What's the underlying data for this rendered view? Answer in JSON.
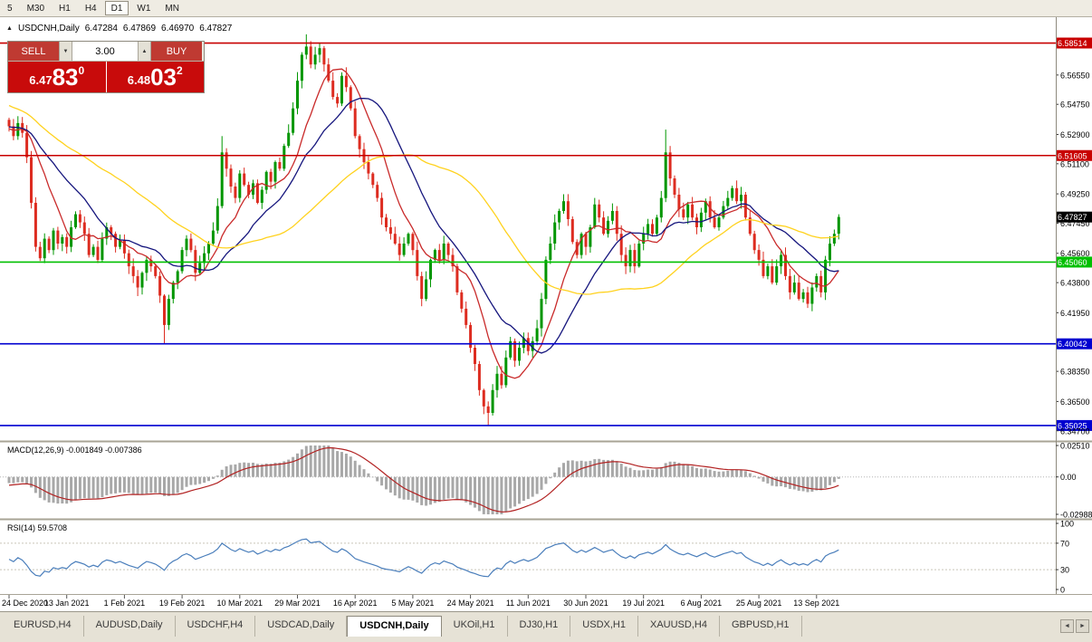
{
  "toolbar": {
    "timeframes": [
      "5",
      "M30",
      "H1",
      "H4",
      "D1",
      "W1",
      "MN"
    ],
    "active_timeframe": "D1"
  },
  "chart_header": {
    "collapse_icon": "▲",
    "symbol": "USDCNH,Daily",
    "open": "6.47284",
    "high": "6.47869",
    "low": "6.46970",
    "close": "6.47827"
  },
  "trade_panel": {
    "sell_label": "SELL",
    "buy_label": "BUY",
    "volume": "3.00",
    "spin_down": "▼",
    "spin_up": "▲",
    "bid": {
      "prefix": "6.47",
      "pips": "83",
      "point": "0"
    },
    "ask": {
      "prefix": "6.48",
      "pips": "03",
      "point": "2"
    }
  },
  "price_axis": {
    "ticks": [
      "6.56550",
      "6.54750",
      "6.52900",
      "6.51100",
      "6.49250",
      "6.47450",
      "6.45600",
      "6.43800",
      "6.41950",
      "6.38350",
      "6.36500",
      "6.34700"
    ]
  },
  "hlines": [
    {
      "price": 6.58514,
      "label": "6.58514",
      "color": "#c80000"
    },
    {
      "price": 6.51605,
      "label": "6.51605",
      "color": "#c80000"
    },
    {
      "price": 6.4506,
      "label": "6.45060",
      "color": "#00c000"
    },
    {
      "price": 6.40042,
      "label": "6.40042",
      "color": "#0000d0"
    },
    {
      "price": 6.35025,
      "label": "6.35025",
      "color": "#0000d0"
    }
  ],
  "current_price": {
    "label": "6.47827",
    "value": 6.47827,
    "bg": "#000000"
  },
  "macd": {
    "title": "MACD(12,26,9) -0.001849 -0.007386",
    "axis": [
      {
        "label": "0.02510",
        "value": 0.0251
      },
      {
        "label": "0.00",
        "value": 0
      },
      {
        "label": "-0.02988",
        "value": -0.02988
      }
    ]
  },
  "rsi": {
    "title": "RSI(14) 59.5708",
    "axis": [
      {
        "label": "100",
        "value": 100
      },
      {
        "label": "70",
        "value": 70
      },
      {
        "label": "30",
        "value": 30
      },
      {
        "label": "0",
        "value": 0
      }
    ],
    "levels": [
      70,
      30
    ]
  },
  "date_axis": {
    "labels": [
      "24 Dec 2020",
      "13 Jan 2021",
      "1 Feb 2021",
      "19 Feb 2021",
      "10 Mar 2021",
      "29 Mar 2021",
      "16 Apr 2021",
      "5 May 2021",
      "24 May 2021",
      "11 Jun 2021",
      "30 Jun 2021",
      "19 Jul 2021",
      "6 Aug 2021",
      "25 Aug 2021",
      "13 Sep 2021"
    ]
  },
  "tabs": {
    "items": [
      "EURUSD,H4",
      "AUDUSD,Daily",
      "USDCHF,H4",
      "USDCAD,Daily",
      "USDCNH,Daily",
      "UKOil,H1",
      "DJ30,H1",
      "USDX,H1",
      "XAUUSD,H4",
      "GBPUSD,H1"
    ],
    "active": "USDCNH,Daily",
    "scroll_left": "◄",
    "scroll_right": "►"
  },
  "chart_data": {
    "type": "candlestick",
    "symbol": "USDCNH",
    "timeframe": "Daily",
    "ylim": [
      6.3413,
      6.601
    ],
    "macd_range": [
      -0.02988,
      0.0251
    ],
    "colors": {
      "bull": "#009600",
      "bear": "#dd2c20",
      "ma_fast": "#c92a2a",
      "ma_mid": "#15157d",
      "ma_slow": "#ffd21e",
      "macd_hist": "#a8a8a8",
      "macd_signal": "#b22222",
      "rsi": "#4a7ebb"
    },
    "moving_averages": [
      {
        "period": 10,
        "color_key": "ma_fast"
      },
      {
        "period": 20,
        "color_key": "ma_mid"
      },
      {
        "period": 45,
        "color_key": "ma_slow"
      }
    ],
    "date_tick_indices": [
      0,
      13,
      26,
      39,
      52,
      65,
      78,
      91,
      104,
      117,
      130,
      143,
      156,
      169,
      182
    ],
    "pre_closes": [
      6.605,
      6.598,
      6.601,
      6.594,
      6.588,
      6.592,
      6.585,
      6.58,
      6.584,
      6.581,
      6.578,
      6.572,
      6.575,
      6.568,
      6.562,
      6.566,
      6.558,
      6.552,
      6.556,
      6.548,
      6.545,
      6.55,
      6.542,
      6.538,
      6.544,
      6.548,
      6.542,
      6.536,
      6.54,
      6.545,
      6.538,
      6.532,
      6.538,
      6.542,
      6.536,
      6.53,
      6.535,
      6.54,
      6.534,
      6.528,
      6.532,
      6.538,
      6.532,
      6.526,
      6.53,
      6.536,
      6.531,
      6.527,
      6.533,
      6.538
    ],
    "closes": [
      6.534,
      6.528,
      6.536,
      6.53,
      6.515,
      6.487,
      6.46,
      6.453,
      6.465,
      6.458,
      6.47,
      6.462,
      6.466,
      6.46,
      6.472,
      6.48,
      6.475,
      6.468,
      6.455,
      6.46,
      6.452,
      6.465,
      6.472,
      6.468,
      6.46,
      6.464,
      6.456,
      6.448,
      6.442,
      6.435,
      6.444,
      6.452,
      6.448,
      6.442,
      6.43,
      6.412,
      6.428,
      6.438,
      6.445,
      6.458,
      6.465,
      6.458,
      6.444,
      6.45,
      6.456,
      6.462,
      6.47,
      6.485,
      6.518,
      6.508,
      6.497,
      6.49,
      6.505,
      6.498,
      6.492,
      6.499,
      6.487,
      6.495,
      6.506,
      6.5,
      6.512,
      6.508,
      6.522,
      6.53,
      6.545,
      6.562,
      6.578,
      6.583,
      6.572,
      6.578,
      6.582,
      6.572,
      6.562,
      6.552,
      6.548,
      6.565,
      6.558,
      6.545,
      6.528,
      6.52,
      6.512,
      6.505,
      6.498,
      6.49,
      6.478,
      6.472,
      6.468,
      6.462,
      6.455,
      6.462,
      6.468,
      6.458,
      6.442,
      6.428,
      6.44,
      6.452,
      6.458,
      6.452,
      6.462,
      6.455,
      6.448,
      6.432,
      6.422,
      6.412,
      6.398,
      6.388,
      6.372,
      6.362,
      6.358,
      6.372,
      6.382,
      6.375,
      6.392,
      6.402,
      6.39,
      6.398,
      6.404,
      6.396,
      6.402,
      6.41,
      6.428,
      6.452,
      6.462,
      6.475,
      6.482,
      6.488,
      6.477,
      6.463,
      6.455,
      6.468,
      6.46,
      6.472,
      6.486,
      6.478,
      6.468,
      6.476,
      6.482,
      6.468,
      6.455,
      6.448,
      6.458,
      6.448,
      6.462,
      6.468,
      6.474,
      6.468,
      6.478,
      6.49,
      6.518,
      6.502,
      6.492,
      6.483,
      6.478,
      6.486,
      6.478,
      6.472,
      6.481,
      6.488,
      6.478,
      6.472,
      6.478,
      6.485,
      6.49,
      6.496,
      6.488,
      6.492,
      6.478,
      6.468,
      6.458,
      6.452,
      6.442,
      6.448,
      6.438,
      6.448,
      6.455,
      6.442,
      6.432,
      6.438,
      6.428,
      6.432,
      6.425,
      6.435,
      6.442,
      6.432,
      6.452,
      6.462,
      6.468,
      6.4783
    ],
    "wick_overrides": {
      "35": {
        "low": 6.4005
      },
      "48": {
        "high": 6.528
      },
      "67": {
        "high": 6.5905
      },
      "108": {
        "low": 6.3505
      },
      "148": {
        "high": 6.532
      },
      "187": {
        "high": 6.48
      }
    }
  }
}
